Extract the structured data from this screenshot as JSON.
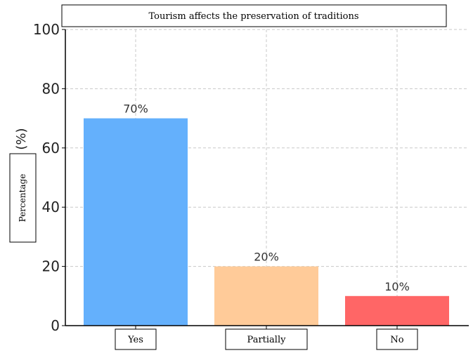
{
  "chart_data": {
    "type": "bar",
    "title": "Tourism affects the preservation of traditions",
    "categories": [
      "Yes",
      "Partially",
      "No"
    ],
    "values": [
      70,
      20,
      10
    ],
    "value_labels": [
      "70%",
      "20%",
      "10%"
    ],
    "colors": [
      "#64b0fc",
      "#ffcb99",
      "#ff6666"
    ],
    "ylabel": "Percentage",
    "yunit": "(%)",
    "ylim": [
      0,
      100
    ],
    "yticks": [
      0,
      20,
      40,
      60,
      80,
      100
    ],
    "grid": true
  }
}
